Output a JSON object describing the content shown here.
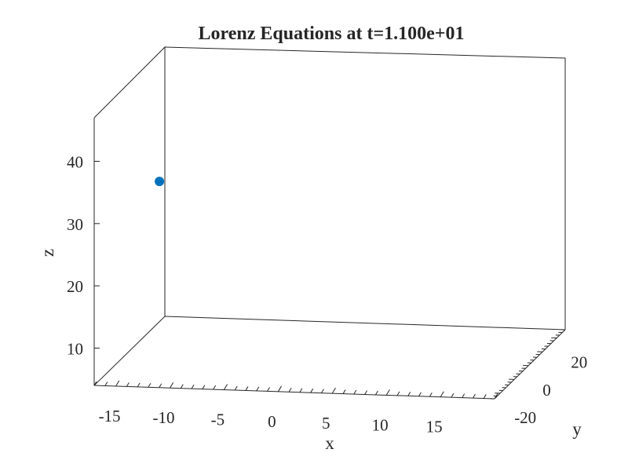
{
  "chart_data": {
    "type": "scatter",
    "projection": "3d",
    "title": "Lorenz Equations at t=1.100e+01",
    "xlabel": "x",
    "ylabel": "y",
    "zlabel": "z",
    "xlim": [
      -17,
      20
    ],
    "ylim": [
      -24,
      26
    ],
    "zlim": [
      4,
      47
    ],
    "xticks": [
      "-15",
      "-10",
      "-5",
      "0",
      "5",
      "10",
      "15"
    ],
    "xtick_values": [
      -15,
      -10,
      -5,
      0,
      5,
      10,
      15
    ],
    "yticks": [
      "-20",
      "0",
      "20"
    ],
    "ytick_values": [
      -20,
      0,
      20
    ],
    "zticks": [
      "10",
      "20",
      "30",
      "40"
    ],
    "ztick_values": [
      10,
      20,
      30,
      40
    ],
    "grid": false,
    "marker_color": "#0072BD",
    "points": [
      {
        "x": -12.8,
        "y": -10.0,
        "z": 33.9
      }
    ]
  }
}
